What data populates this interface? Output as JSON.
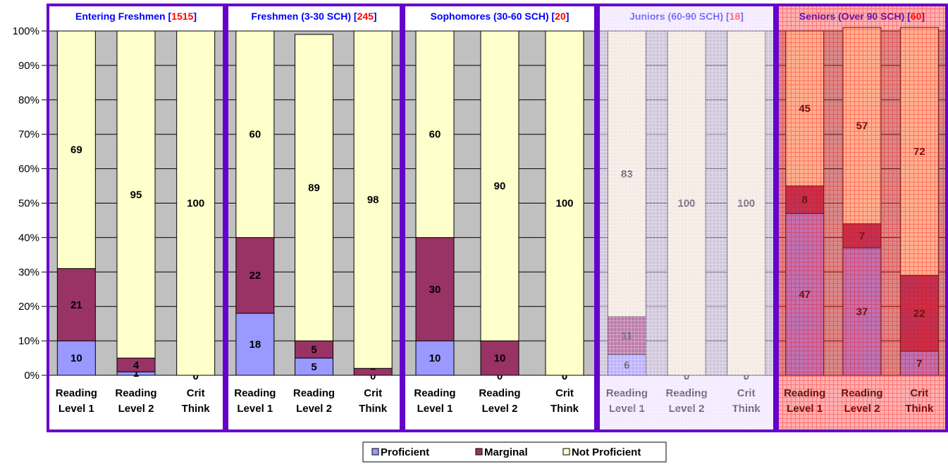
{
  "chart_data": {
    "type": "bar",
    "stacked": true,
    "normalized": true,
    "ylim": [
      0,
      100
    ],
    "y_ticks": [
      "0%",
      "10%",
      "20%",
      "30%",
      "40%",
      "50%",
      "60%",
      "70%",
      "80%",
      "90%",
      "100%"
    ],
    "legend": {
      "placement": "bottom",
      "entries": [
        {
          "name": "Proficient",
          "color": "#9999ff"
        },
        {
          "name": "Marginal",
          "color": "#993366"
        },
        {
          "name": "Not Proficient",
          "color": "#ffffcc"
        }
      ]
    },
    "colors": {
      "proficient": "#9999ff",
      "marginal": "#993366",
      "not_proficient": "#ffffcc",
      "plot_background": "#c0c0c0",
      "panel_border": "#6600cc",
      "title_text": "#0000ff",
      "count_text": "#ff0000"
    },
    "panels": [
      {
        "title": "Entering Freshmen",
        "count": "1515",
        "style": "solid",
        "bars": [
          {
            "label": [
              "Reading",
              "Level 1"
            ],
            "proficient": 10,
            "marginal": 21,
            "not_proficient": 69
          },
          {
            "label": [
              "Reading",
              "Level 2"
            ],
            "proficient": 1,
            "marginal": 4,
            "not_proficient": 95
          },
          {
            "label": [
              "Crit",
              "Think"
            ],
            "proficient": 0,
            "marginal": 0,
            "not_proficient": 100
          }
        ]
      },
      {
        "title": "Freshmen (3-30 SCH)",
        "count": "245",
        "style": "solid",
        "bars": [
          {
            "label": [
              "Reading",
              "Level 1"
            ],
            "proficient": 18,
            "marginal": 22,
            "not_proficient": 60
          },
          {
            "label": [
              "Reading",
              "Level 2"
            ],
            "proficient": 5,
            "marginal": 5,
            "not_proficient": 89
          },
          {
            "label": [
              "Crit",
              "Think"
            ],
            "proficient": 0,
            "marginal": 2,
            "not_proficient": 98
          }
        ]
      },
      {
        "title": "Sophomores (30-60 SCH)",
        "count": "20",
        "style": "solid",
        "bars": [
          {
            "label": [
              "Reading",
              "Level 1"
            ],
            "proficient": 10,
            "marginal": 30,
            "not_proficient": 60
          },
          {
            "label": [
              "Reading",
              "Level 2"
            ],
            "proficient": 0,
            "marginal": 10,
            "not_proficient": 90
          },
          {
            "label": [
              "Crit",
              "Think"
            ],
            "proficient": 0,
            "marginal": 0,
            "not_proficient": 100
          }
        ]
      },
      {
        "title": "Juniors (60-90 SCH)",
        "count": "18",
        "style": "faded",
        "bars": [
          {
            "label": [
              "Reading",
              "Level 1"
            ],
            "proficient": 6,
            "marginal": 11,
            "not_proficient": 83
          },
          {
            "label": [
              "Reading",
              "Level 2"
            ],
            "proficient": 0,
            "marginal": 0,
            "not_proficient": 100
          },
          {
            "label": [
              "Crit",
              "Think"
            ],
            "proficient": 0,
            "marginal": 0,
            "not_proficient": 100
          }
        ]
      },
      {
        "title": "Seniors (Over 90 SCH)",
        "count": "60",
        "style": "red-overlay",
        "bars": [
          {
            "label": [
              "Reading",
              "Level 1"
            ],
            "proficient": 47,
            "marginal": 8,
            "not_proficient": 45
          },
          {
            "label": [
              "Reading",
              "Level 2"
            ],
            "proficient": 37,
            "marginal": 7,
            "not_proficient": 57
          },
          {
            "label": [
              "Crit",
              "Think"
            ],
            "proficient": 7,
            "marginal": 22,
            "not_proficient": 72
          }
        ]
      }
    ]
  }
}
